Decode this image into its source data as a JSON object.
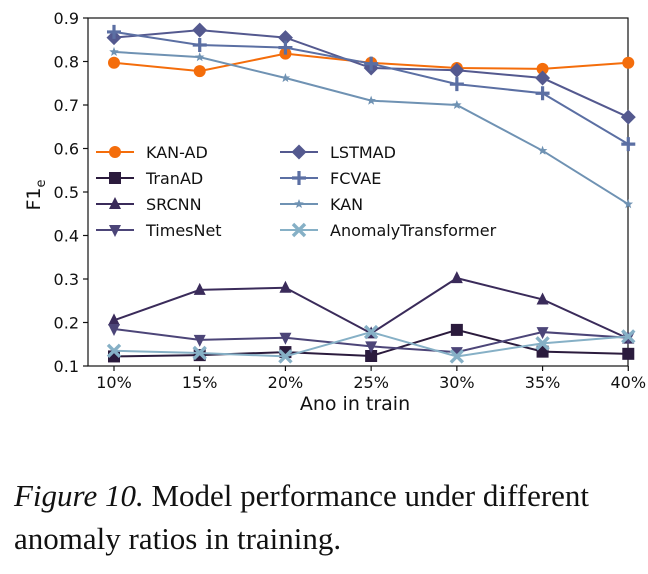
{
  "chart_data": {
    "type": "line",
    "categories": [
      "10%",
      "15%",
      "20%",
      "25%",
      "30%",
      "35%",
      "40%"
    ],
    "xlabel": "Ano in train",
    "ylabel_main": "F1",
    "ylabel_sub": "e",
    "ylim": [
      0.1,
      0.9
    ],
    "yticks": [
      "0.1",
      "0.2",
      "0.3",
      "0.4",
      "0.5",
      "0.6",
      "0.7",
      "0.8",
      "0.9"
    ],
    "grid": false,
    "legend_position": "center-left",
    "series": [
      {
        "name": "KAN-AD",
        "color": "#f46d0b",
        "marker": "circle",
        "values": [
          0.797,
          0.778,
          0.818,
          0.797,
          0.785,
          0.783,
          0.797
        ]
      },
      {
        "name": "TranAD",
        "color": "#2b1b3d",
        "marker": "square",
        "values": [
          0.122,
          0.125,
          0.132,
          0.123,
          0.183,
          0.133,
          0.128
        ]
      },
      {
        "name": "SRCNN",
        "color": "#3a2b5a",
        "marker": "triangle-up",
        "values": [
          0.205,
          0.275,
          0.28,
          0.175,
          0.302,
          0.253,
          0.163
        ]
      },
      {
        "name": "TimesNet",
        "color": "#4c4578",
        "marker": "triangle-down",
        "values": [
          0.185,
          0.16,
          0.165,
          0.145,
          0.132,
          0.178,
          0.165
        ]
      },
      {
        "name": "LSTMAD",
        "color": "#54598f",
        "marker": "diamond",
        "values": [
          0.855,
          0.872,
          0.855,
          0.785,
          0.78,
          0.762,
          0.672
        ]
      },
      {
        "name": "FCVAE",
        "color": "#5b6fa3",
        "marker": "plus",
        "values": [
          0.868,
          0.838,
          0.832,
          0.795,
          0.748,
          0.727,
          0.61
        ]
      },
      {
        "name": "KAN",
        "color": "#6f92b3",
        "marker": "star",
        "values": [
          0.822,
          0.81,
          0.762,
          0.71,
          0.7,
          0.595,
          0.472
        ]
      },
      {
        "name": "AnomalyTransformer",
        "color": "#86b0c6",
        "marker": "x",
        "values": [
          0.135,
          0.13,
          0.122,
          0.178,
          0.122,
          0.152,
          0.168
        ]
      }
    ]
  },
  "caption": {
    "label": "Figure 10.",
    "text": " Model performance under different anomaly ratios in training."
  }
}
